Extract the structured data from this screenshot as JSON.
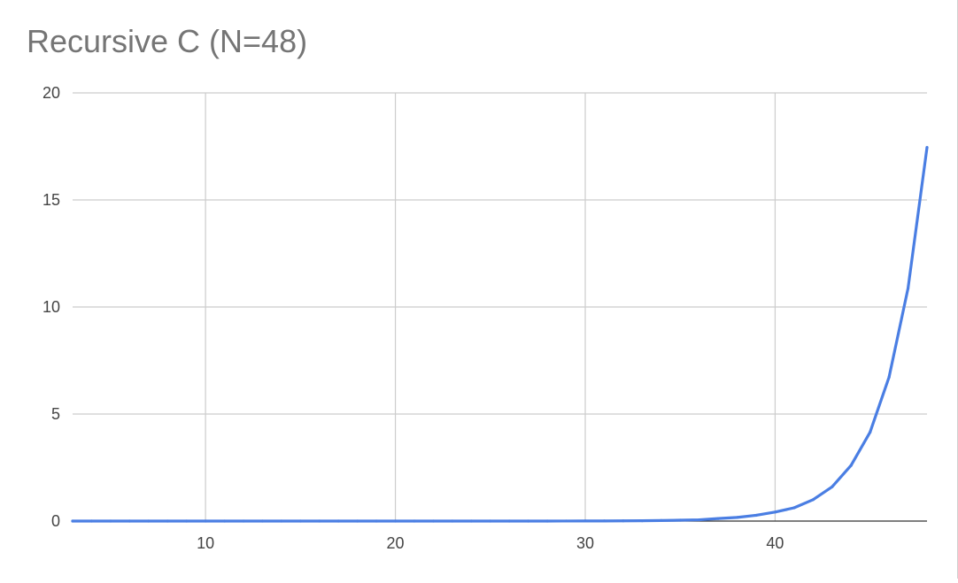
{
  "chart_data": {
    "type": "line",
    "title": "Recursive C (N=48)",
    "xlabel": "",
    "ylabel": "",
    "xlim": [
      3,
      48
    ],
    "ylim": [
      0,
      20
    ],
    "x_ticks": [
      10,
      20,
      30,
      40
    ],
    "y_ticks": [
      0,
      5,
      10,
      15,
      20
    ],
    "grid": true,
    "legend": "none",
    "colors": {
      "series": "#4a7ee3",
      "grid": "#cccccc",
      "axis": "#333333",
      "title": "#757575"
    },
    "series": [
      {
        "x": [
          3,
          4,
          5,
          6,
          7,
          8,
          9,
          10,
          11,
          12,
          13,
          14,
          15,
          16,
          17,
          18,
          19,
          20,
          21,
          22,
          23,
          24,
          25,
          26,
          27,
          28,
          29,
          30,
          31,
          32,
          33,
          34,
          35,
          36,
          37,
          38,
          39,
          40,
          41,
          42,
          43,
          44,
          45,
          46,
          47,
          48
        ],
        "values": [
          0,
          0,
          0,
          0,
          0,
          0,
          0,
          0,
          0,
          0,
          0,
          0,
          0,
          0,
          0,
          0,
          0,
          0,
          0,
          0,
          0,
          0,
          0,
          0,
          0,
          0,
          0.002,
          0.004,
          0.006,
          0.01,
          0.015,
          0.025,
          0.04,
          0.06,
          0.12,
          0.17,
          0.27,
          0.42,
          0.62,
          1.0,
          1.6,
          2.6,
          4.15,
          6.72,
          10.87,
          17.45
        ]
      }
    ]
  }
}
